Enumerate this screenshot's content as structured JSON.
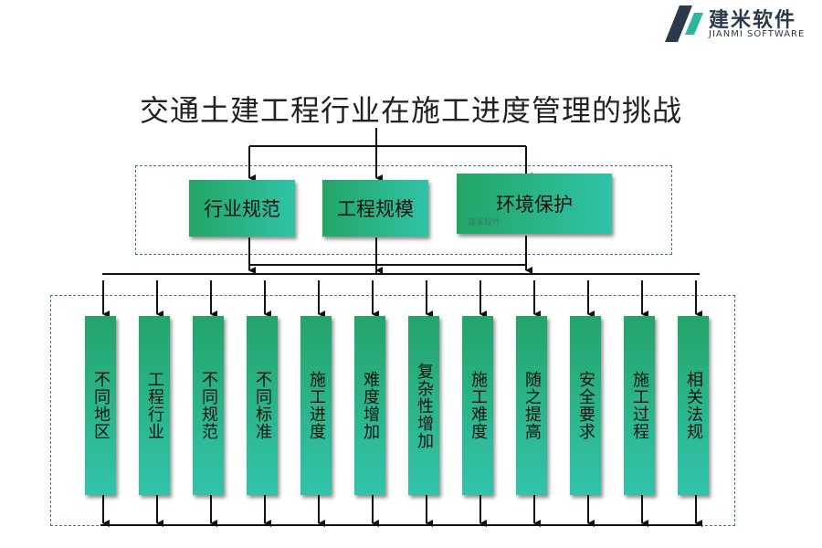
{
  "logo": {
    "name_cn": "建米软件",
    "name_en": "JIANMI SOFTWARE"
  },
  "title": "交通土建工程行业在施工进度管理的挑战",
  "top_boxes": [
    "行业规范",
    "工程规模",
    "环境保护"
  ],
  "watermark": "建米软件",
  "bottom_boxes": [
    "不同地区",
    "工程行业",
    "不同规范",
    "不同标准",
    "施工进度",
    "难度增加",
    "复杂性增加",
    "施工难度",
    "随之提高",
    "安全要求",
    "施工过程",
    "相关法规"
  ],
  "colors": {
    "box_start": "#23a565",
    "box_end": "#2fc3a8",
    "frame": "#4a6aa8"
  }
}
